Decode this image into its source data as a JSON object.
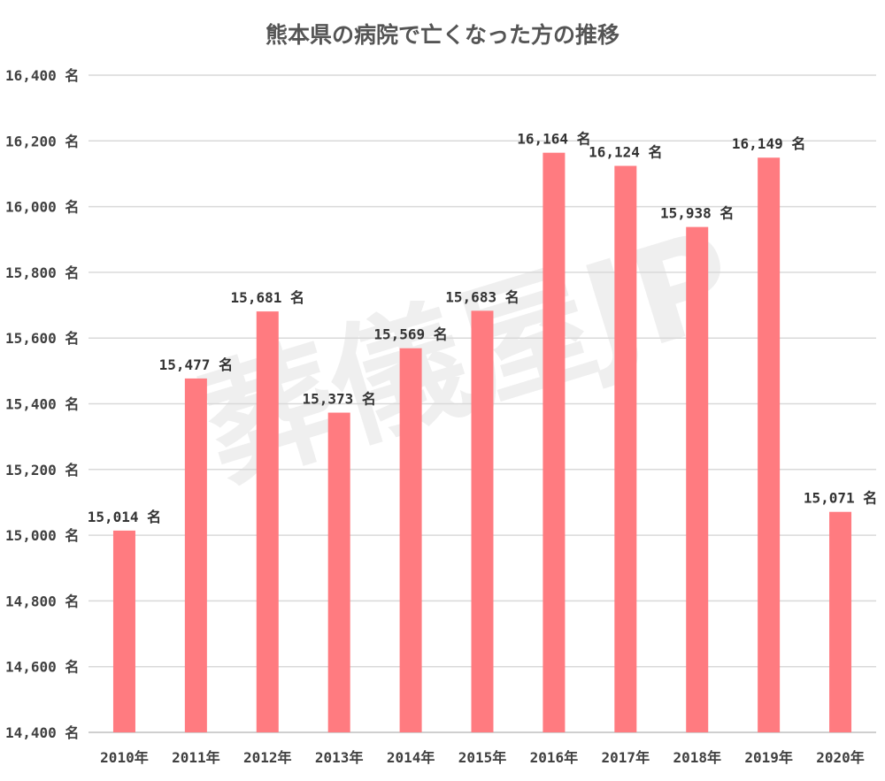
{
  "chart_data": {
    "type": "bar",
    "title": "熊本県の病院で亡くなった方の推移",
    "xlabel": "",
    "ylabel": "",
    "ylim": [
      14400,
      16400
    ],
    "ytick_step": 200,
    "ytick_labels": [
      "14,400 名",
      "14,600 名",
      "14,800 名",
      "15,000 名",
      "15,200 名",
      "15,400 名",
      "15,600 名",
      "15,800 名",
      "16,000 名",
      "16,200 名",
      "16,400 名"
    ],
    "categories": [
      "2010年",
      "2011年",
      "2012年",
      "2013年",
      "2014年",
      "2015年",
      "2016年",
      "2017年",
      "2018年",
      "2019年",
      "2020年"
    ],
    "values": [
      15014,
      15477,
      15681,
      15373,
      15569,
      15683,
      16164,
      16124,
      15938,
      16149,
      15071
    ],
    "data_labels": [
      "15,014 名",
      "15,477 名",
      "15,681 名",
      "15,373 名",
      "15,569 名",
      "15,683 名",
      "16,164 名",
      "16,124 名",
      "15,938 名",
      "16,149 名",
      "15,071 名"
    ],
    "bar_color": "#ff7b80",
    "grid": true,
    "legend": "none"
  },
  "watermark": "葬儀屋JP"
}
